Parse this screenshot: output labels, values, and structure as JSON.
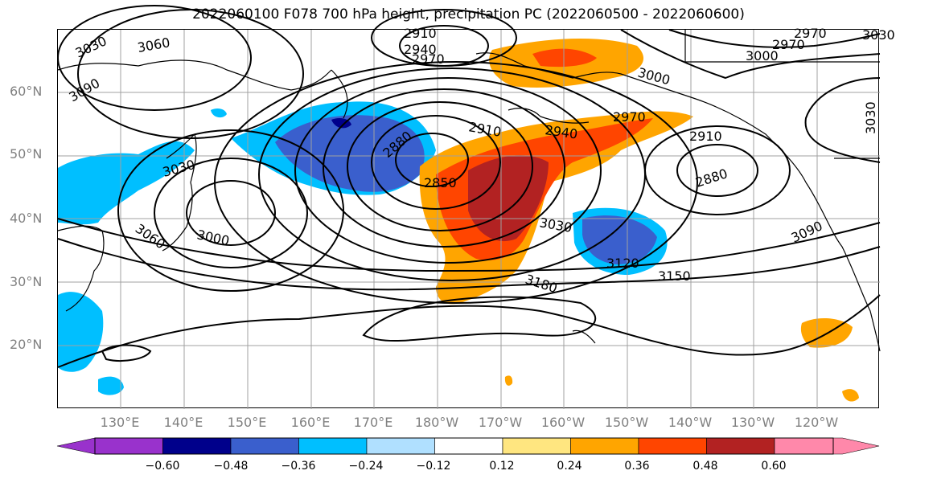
{
  "title": "2022060100 F078 700 hPa height, precipitation PC (2022060500 - 2022060600)",
  "lat_labels": [
    "60°N",
    "50°N",
    "40°N",
    "30°N",
    "20°N"
  ],
  "lon_labels": [
    "130°E",
    "140°E",
    "150°E",
    "160°E",
    "170°E",
    "180°W",
    "170°W",
    "160°W",
    "150°W",
    "140°W",
    "130°W",
    "120°W"
  ],
  "contour_labels": [
    "3030",
    "3060",
    "3090",
    "2910",
    "2940",
    "2970",
    "3000",
    "2970",
    "2940",
    "2910",
    "2880",
    "2850",
    "3030",
    "3000",
    "3060",
    "3030",
    "3090",
    "3120",
    "3150",
    "3180",
    "2880",
    "2910",
    "2970",
    "3000",
    "3030",
    "2970",
    "3030"
  ],
  "colorbar": {
    "ticks": [
      "−0.60",
      "−0.48",
      "−0.36",
      "−0.24",
      "−0.12",
      "0.12",
      "0.24",
      "0.36",
      "0.48",
      "0.60"
    ],
    "colors": [
      "#9932cc",
      "#00008b",
      "#3a5fcd",
      "#00bfff",
      "#b0e0ff",
      "#ffffff",
      "#ffe680",
      "#ffa500",
      "#ff4500",
      "#b22222",
      "#ff88aa"
    ]
  }
}
